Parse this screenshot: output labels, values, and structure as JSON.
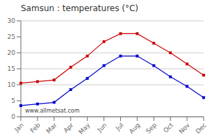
{
  "chart_data": {
    "type": "line",
    "title": "Samsun : temperatures (°C)",
    "categories": [
      "Jan",
      "Feb",
      "Mar",
      "Apr",
      "May",
      "Jun",
      "Jul",
      "Aug",
      "Sep",
      "Oct",
      "Nov",
      "Dec"
    ],
    "series": [
      {
        "color": "#cc0000",
        "marker": "square",
        "values": [
          10.5,
          11.0,
          11.5,
          15.5,
          19.0,
          23.5,
          26.0,
          26.0,
          23.0,
          20.0,
          16.5,
          13.0
        ]
      },
      {
        "color": "#0000cc",
        "marker": "square",
        "values": [
          3.5,
          4.0,
          4.5,
          8.5,
          12.0,
          16.0,
          19.0,
          19.0,
          16.0,
          12.5,
          9.5,
          6.0
        ]
      }
    ],
    "ylim": [
      0,
      30
    ],
    "yticks": [
      0,
      5,
      10,
      15,
      20,
      25,
      30
    ],
    "grid": true,
    "annotations": [
      "www.allmetsat.com"
    ]
  }
}
